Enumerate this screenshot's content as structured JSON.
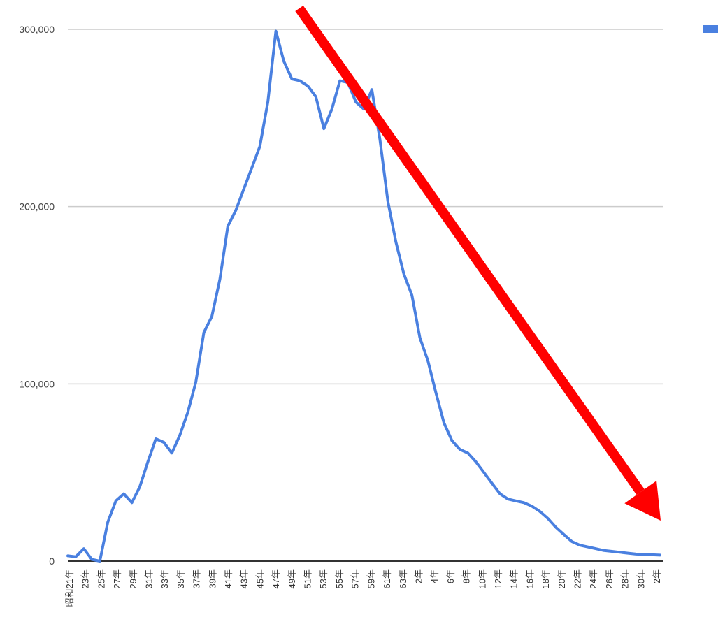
{
  "chart_data": {
    "type": "line",
    "title": "",
    "xlabel": "",
    "ylabel": "",
    "ylim": [
      0,
      300000
    ],
    "yticks": [
      0,
      100000,
      200000,
      300000
    ],
    "ytick_labels": [
      "0",
      "100,000",
      "200,000",
      "300,000"
    ],
    "grid": true,
    "legend": "right",
    "xtick_labels": [
      "昭和21年",
      "23年",
      "25年",
      "27年",
      "29年",
      "31年",
      "33年",
      "35年",
      "37年",
      "39年",
      "41年",
      "43年",
      "45年",
      "47年",
      "49年",
      "51年",
      "53年",
      "55年",
      "57年",
      "59年",
      "61年",
      "63年",
      "2年",
      "4年",
      "6年",
      "8年",
      "10年",
      "12年",
      "14年",
      "16年",
      "18年",
      "20年",
      "22年",
      "24年",
      "26年",
      "28年",
      "30年",
      "2年"
    ],
    "series": [
      {
        "color": "#4a80e0",
        "values": [
          3000,
          2500,
          7000,
          1000,
          0,
          22000,
          34000,
          38000,
          33000,
          42000,
          56000,
          69000,
          67000,
          61000,
          71000,
          84000,
          101000,
          129000,
          138000,
          159000,
          189000,
          198000,
          210000,
          222000,
          234000,
          259000,
          299000,
          282000,
          272000,
          271000,
          268000,
          262000,
          244000,
          255000,
          271000,
          270000,
          259000,
          255000,
          266000,
          238000,
          203000,
          180000,
          162000,
          150000,
          126000,
          113000,
          95000,
          78000,
          68000,
          63000,
          61000,
          56000,
          50000,
          44000,
          38000,
          35000,
          34000,
          33000,
          31000,
          28000,
          24000,
          19000,
          15000,
          11000,
          9000,
          8000,
          7000,
          6000,
          5500,
          5000,
          4500,
          4000,
          3800,
          3600,
          3400
        ]
      }
    ],
    "annotation": {
      "type": "arrow",
      "color": "#ff0000"
    },
    "colors": {
      "line": "#4a80e0",
      "arrow": "#ff0000",
      "grid": "#cccccc",
      "background": "#ffffff"
    }
  }
}
